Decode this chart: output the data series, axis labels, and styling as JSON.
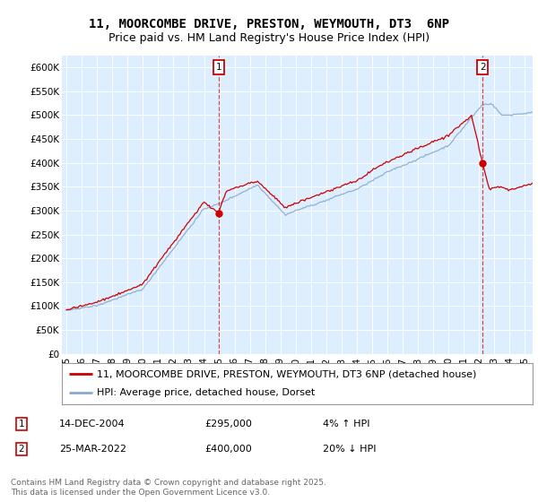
{
  "title": "11, MOORCOMBE DRIVE, PRESTON, WEYMOUTH, DT3  6NP",
  "subtitle": "Price paid vs. HM Land Registry's House Price Index (HPI)",
  "ylabel_ticks": [
    0,
    50000,
    100000,
    150000,
    200000,
    250000,
    300000,
    350000,
    400000,
    450000,
    500000,
    550000,
    600000
  ],
  "ylabel_labels": [
    "£0",
    "£50K",
    "£100K",
    "£150K",
    "£200K",
    "£250K",
    "£300K",
    "£350K",
    "£400K",
    "£450K",
    "£500K",
    "£550K",
    "£600K"
  ],
  "xlim": [
    1994.7,
    2025.5
  ],
  "ylim": [
    0,
    625000
  ],
  "bg_color": "#ddeeff",
  "red_color": "#cc0000",
  "blue_color": "#88aacc",
  "legend_label_red": "11, MOORCOMBE DRIVE, PRESTON, WEYMOUTH, DT3 6NP (detached house)",
  "legend_label_blue": "HPI: Average price, detached house, Dorset",
  "sale1_x": 2004.96,
  "sale1_price_y": 295000,
  "sale1_date": "14-DEC-2004",
  "sale1_price": "£295,000",
  "sale1_hpi": "4% ↑ HPI",
  "sale2_x": 2022.23,
  "sale2_price_y": 400000,
  "sale2_date": "25-MAR-2022",
  "sale2_price": "£400,000",
  "sale2_hpi": "20% ↓ HPI",
  "footnote": "Contains HM Land Registry data © Crown copyright and database right 2025.\nThis data is licensed under the Open Government Licence v3.0.",
  "title_fontsize": 10,
  "subtitle_fontsize": 9,
  "tick_fontsize": 7.5,
  "legend_fontsize": 8,
  "annotation_fontsize": 8,
  "footnote_fontsize": 6.5
}
